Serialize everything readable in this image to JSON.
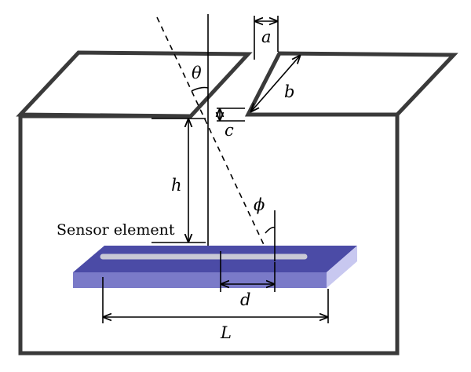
{
  "labels": {
    "a": "a",
    "b": "b",
    "c": "c",
    "h": "h",
    "theta": "θ",
    "phi": "ϕ",
    "d": "d",
    "L": "L",
    "sensor": "Sensor element"
  },
  "colors": {
    "frame": "#3a3a3a",
    "sensor_top": "#4b4ba6",
    "sensor_front": "#7a7ac8",
    "sensor_side": "#c8c8f0",
    "sensor_stripe": "#c9c9d6"
  }
}
